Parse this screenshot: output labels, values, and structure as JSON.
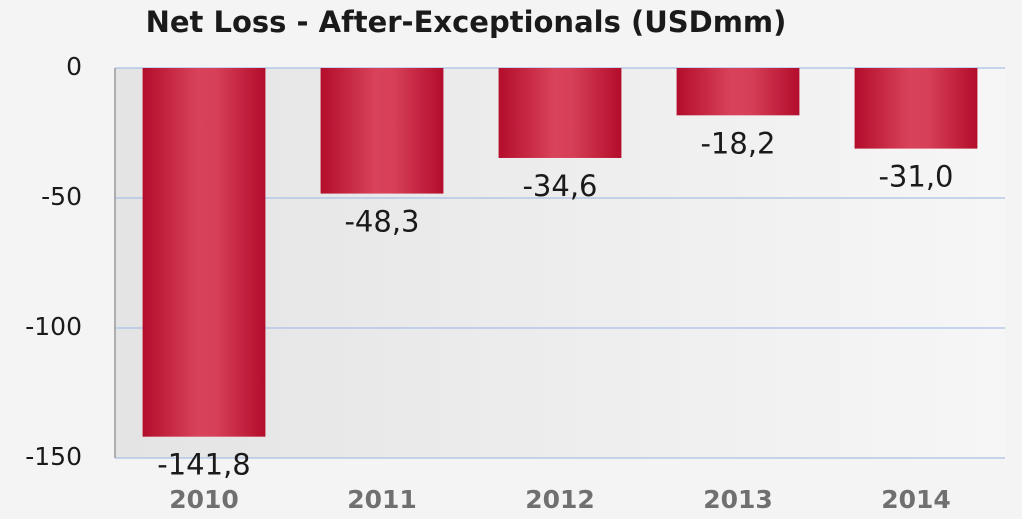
{
  "chart_data": {
    "type": "bar",
    "title": "Net Loss - After-Exceptionals (USDmm)",
    "categories": [
      "2010",
      "2011",
      "2012",
      "2013",
      "2014"
    ],
    "values": [
      -141.8,
      -48.3,
      -34.6,
      -18.2,
      -31.0
    ],
    "value_labels": [
      "-141,8",
      "-48,3",
      "-34,6",
      "-18,2",
      "-31,0"
    ],
    "color": "#c8213f",
    "ylim": [
      -150,
      0
    ],
    "yticks": [
      0,
      -50,
      -100,
      -150
    ],
    "grid": true
  }
}
